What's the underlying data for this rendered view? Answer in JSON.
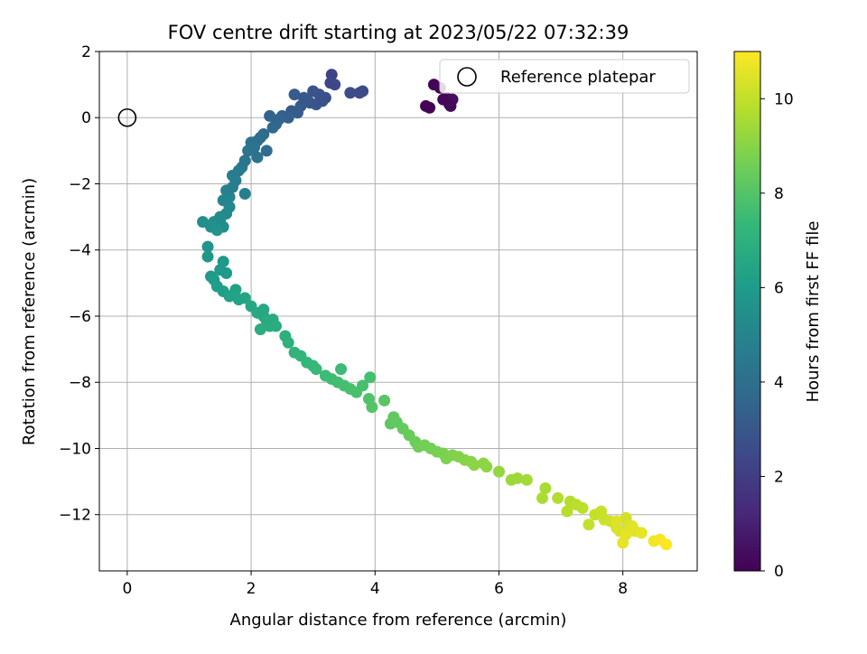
{
  "chart_data": {
    "type": "scatter",
    "title": "FOV centre drift starting at 2023/05/22 07:32:39",
    "xlabel": "Angular distance from reference (arcmin)",
    "ylabel": "Rotation from reference (arcmin)",
    "xlim": [
      -0.45,
      9.2
    ],
    "ylim": [
      -13.7,
      2.0
    ],
    "xticks": [
      "0",
      "2",
      "4",
      "6",
      "8"
    ],
    "yticks": [
      "2",
      "0",
      "−2",
      "−4",
      "−6",
      "−8",
      "−10",
      "−12"
    ],
    "grid": true,
    "legend": {
      "placement": "top-right",
      "entries": [
        "Reference platepar"
      ]
    },
    "reference_point": {
      "x": 0,
      "y": 0
    },
    "colorbar": {
      "label": "Hours from first FF file",
      "range": [
        0,
        11
      ],
      "ticks": [
        "0",
        "2",
        "4",
        "6",
        "8",
        "10"
      ],
      "colormap": "viridis",
      "colors": [
        "#440154",
        "#482878",
        "#3e4989",
        "#31688e",
        "#26828e",
        "#1f9e89",
        "#35b779",
        "#6ece58",
        "#b5de2b",
        "#fde725"
      ]
    },
    "series": [
      {
        "x": [
          4.82,
          4.95,
          5.05,
          5.15,
          5.2,
          5.25,
          5.1,
          4.88,
          5.22,
          3.3,
          3.28,
          3.35,
          3.8,
          3.75,
          3.6,
          3.2,
          3.1,
          3.0,
          2.95,
          2.9,
          2.8,
          3.05,
          2.7,
          2.65,
          2.85,
          3.15,
          2.75,
          2.6,
          2.5,
          2.45,
          2.4,
          2.3,
          2.35,
          2.2,
          2.15,
          2.1,
          2.0,
          2.05,
          2.25,
          1.95,
          2.1,
          1.9,
          1.85,
          1.8,
          1.7,
          1.75,
          1.6,
          1.65,
          1.9,
          1.55,
          1.7,
          1.65,
          1.6,
          1.5,
          1.55,
          1.45,
          1.4,
          1.35,
          1.3,
          1.22,
          1.45,
          1.5,
          1.3,
          1.55,
          1.35,
          1.4,
          1.45,
          1.6,
          1.5,
          1.55,
          1.65,
          1.75,
          1.8,
          1.9,
          2.0,
          2.1,
          2.2,
          2.25,
          2.3,
          2.35,
          2.4,
          2.15,
          2.2,
          2.55,
          2.6,
          2.7,
          2.8,
          2.9,
          3.0,
          3.05,
          3.2,
          3.3,
          3.4,
          3.45,
          3.5,
          3.6,
          3.7,
          3.8,
          3.9,
          3.95,
          3.92,
          4.15,
          4.25,
          4.3,
          4.35,
          4.45,
          4.55,
          4.65,
          4.7,
          4.8,
          4.9,
          5.0,
          5.1,
          5.15,
          5.25,
          5.35,
          5.45,
          5.55,
          5.6,
          5.75,
          5.8,
          6.0,
          6.2,
          6.3,
          6.45,
          6.7,
          6.75,
          6.95,
          7.1,
          7.15,
          7.25,
          7.35,
          7.45,
          7.55,
          7.65,
          7.7,
          7.8,
          7.9,
          7.95,
          8.0,
          8.05,
          8.1,
          8.2,
          8.3,
          8.5,
          8.6,
          8.7,
          7.9,
          8.05,
          8.15
        ],
        "y": [
          0.35,
          1.0,
          0.9,
          0.6,
          0.4,
          0.55,
          0.55,
          0.3,
          0.35,
          1.3,
          1.05,
          1.0,
          0.8,
          0.75,
          0.75,
          0.6,
          0.7,
          0.8,
          0.45,
          0.55,
          0.35,
          0.4,
          0.7,
          0.2,
          0.6,
          0.5,
          0.15,
          0.0,
          0.05,
          -0.05,
          -0.2,
          0.05,
          -0.3,
          -0.5,
          -0.6,
          -0.7,
          -0.75,
          -0.9,
          -1.0,
          -1.0,
          -1.2,
          -1.3,
          -1.5,
          -1.6,
          -1.75,
          -1.9,
          -2.2,
          -2.4,
          -2.3,
          -2.5,
          -2.1,
          -2.7,
          -2.9,
          -3.1,
          -3.3,
          -3.2,
          -3.15,
          -3.3,
          -3.9,
          -3.15,
          -3.4,
          -3.0,
          -4.2,
          -4.35,
          -4.8,
          -4.9,
          -5.1,
          -4.7,
          -4.6,
          -5.25,
          -5.4,
          -5.2,
          -5.5,
          -5.45,
          -5.7,
          -5.9,
          -6.0,
          -6.15,
          -6.3,
          -6.1,
          -6.3,
          -6.4,
          -5.8,
          -6.6,
          -6.8,
          -7.1,
          -7.2,
          -7.4,
          -7.5,
          -7.6,
          -7.8,
          -7.9,
          -8.0,
          -7.6,
          -8.1,
          -8.2,
          -8.3,
          -8.1,
          -8.5,
          -8.75,
          -7.85,
          -8.55,
          -9.25,
          -9.05,
          -9.2,
          -9.4,
          -9.6,
          -9.8,
          -9.95,
          -9.9,
          -10.0,
          -10.1,
          -10.15,
          -10.3,
          -10.2,
          -10.25,
          -10.35,
          -10.4,
          -10.5,
          -10.45,
          -10.55,
          -10.7,
          -10.95,
          -10.9,
          -10.95,
          -11.5,
          -11.2,
          -11.5,
          -11.9,
          -11.6,
          -11.7,
          -11.8,
          -12.3,
          -12.0,
          -11.9,
          -12.15,
          -12.2,
          -12.4,
          -12.5,
          -12.85,
          -12.1,
          -12.35,
          -12.5,
          -12.55,
          -12.8,
          -12.75,
          -12.9,
          -12.2,
          -12.6,
          -12.35
        ],
        "hours": [
          0.1,
          0.15,
          0.2,
          0.3,
          0.35,
          0.4,
          0.2,
          0.05,
          0.25,
          2.2,
          2.3,
          2.4,
          2.5,
          2.55,
          2.6,
          2.7,
          2.8,
          2.85,
          2.9,
          3.0,
          3.1,
          2.95,
          3.15,
          3.2,
          3.05,
          2.75,
          3.25,
          3.3,
          3.4,
          3.5,
          3.6,
          3.55,
          3.7,
          3.8,
          3.9,
          4.0,
          4.1,
          4.15,
          3.85,
          4.2,
          4.25,
          4.3,
          4.4,
          4.5,
          4.6,
          4.65,
          4.8,
          4.9,
          4.75,
          5.0,
          4.7,
          5.1,
          5.2,
          5.3,
          5.4,
          5.35,
          5.45,
          5.5,
          5.7,
          5.4,
          5.6,
          5.3,
          5.8,
          5.9,
          6.0,
          6.05,
          6.1,
          5.95,
          5.9,
          6.2,
          6.3,
          6.25,
          6.35,
          6.4,
          6.5,
          6.6,
          6.65,
          6.7,
          6.75,
          6.7,
          6.8,
          6.85,
          6.55,
          6.95,
          7.0,
          7.1,
          7.2,
          7.3,
          7.35,
          7.4,
          7.5,
          7.55,
          7.6,
          7.5,
          7.7,
          7.75,
          7.8,
          7.75,
          7.9,
          8.0,
          7.7,
          8.1,
          8.2,
          8.25,
          8.3,
          8.35,
          8.4,
          8.5,
          8.55,
          8.6,
          8.65,
          8.7,
          8.75,
          8.8,
          8.85,
          8.9,
          8.95,
          9.0,
          9.05,
          9.05,
          9.1,
          9.2,
          9.35,
          9.4,
          9.45,
          9.6,
          9.55,
          9.7,
          9.8,
          9.75,
          9.85,
          9.9,
          10.0,
          10.05,
          10.1,
          10.15,
          10.2,
          10.3,
          10.4,
          10.6,
          10.25,
          10.35,
          10.5,
          10.6,
          10.8,
          10.9,
          11.0,
          10.45,
          10.55,
          10.5
        ]
      }
    ]
  }
}
